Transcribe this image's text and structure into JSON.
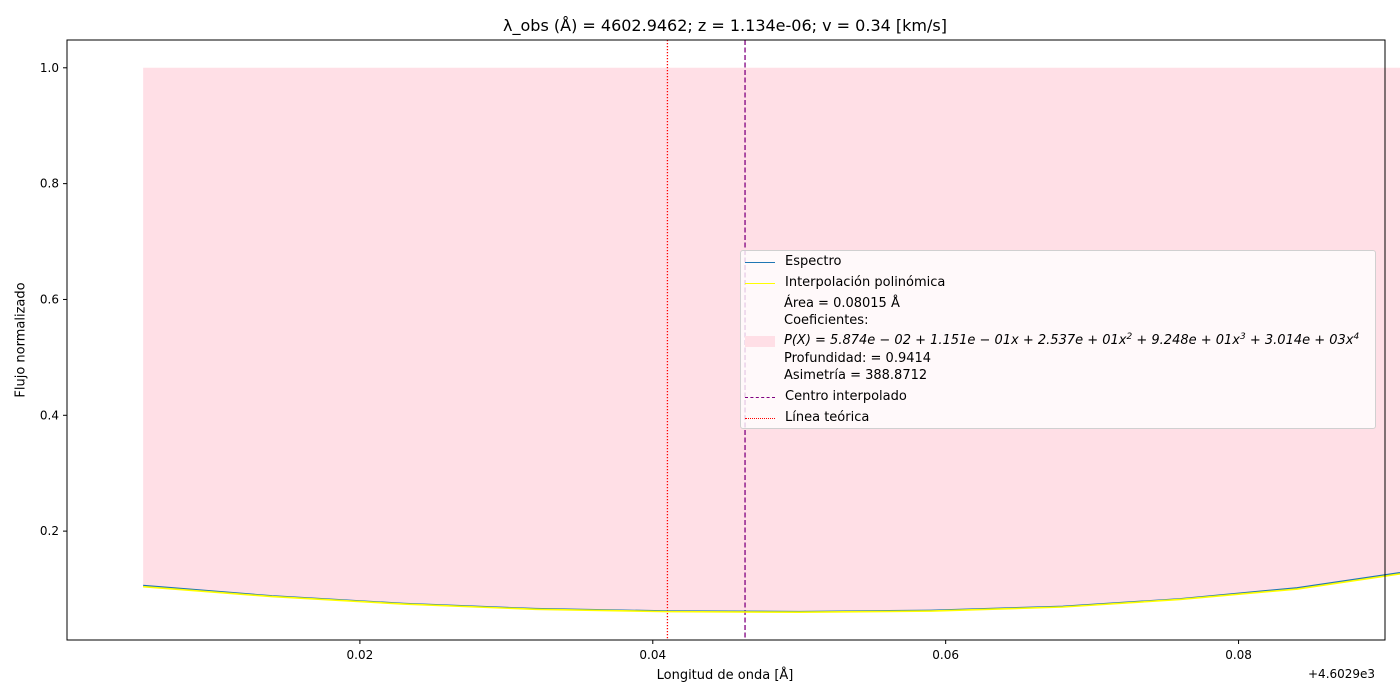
{
  "chart_data": {
    "type": "line",
    "title": "λ_obs (Å) = 4602.9462; z = 1.134e-06; v = 0.34 [km/s]",
    "xlabel": "Longitud de onda [Å]",
    "ylabel": "Flujo normalizado",
    "x_offset_label": "+4.6029e3",
    "x_offset": 4602.9,
    "xlim": [
      4602.9,
      4602.99
    ],
    "ylim": [
      0.012,
      1.048
    ],
    "xticks": [
      0.02,
      0.04,
      0.06,
      0.08
    ],
    "xtick_labels": [
      "0.02",
      "0.04",
      "0.06",
      "0.08"
    ],
    "yticks": [
      0.2,
      0.4,
      0.6,
      0.8,
      1.0
    ],
    "ytick_labels": [
      "0.2",
      "0.4",
      "0.6",
      "0.8",
      "1.0"
    ],
    "grid": false,
    "legend_position": "center-right",
    "fill_region": {
      "x_start": 4602.9052,
      "x_end": 4602.9918,
      "top": 1.0,
      "color": "#ffdfe6"
    },
    "series": [
      {
        "name": "Espectro",
        "color": "#1f77b4",
        "x": [
          4602.9052,
          4602.914,
          4602.923,
          4602.932,
          4602.941,
          4602.95,
          4602.959,
          4602.968,
          4602.976,
          4602.984,
          4602.9918
        ],
        "y": [
          0.106,
          0.088,
          0.075,
          0.066,
          0.062,
          0.061,
          0.063,
          0.07,
          0.083,
          0.102,
          0.131
        ]
      },
      {
        "name": "Interpolación polinómica",
        "color": "#ffff00",
        "x": [
          4602.9052,
          4602.914,
          4602.923,
          4602.932,
          4602.941,
          4602.95,
          4602.959,
          4602.968,
          4602.976,
          4602.984,
          4602.9918
        ],
        "y": [
          0.104,
          0.087,
          0.074,
          0.065,
          0.061,
          0.06,
          0.062,
          0.069,
          0.082,
          0.1,
          0.129
        ]
      },
      {
        "name": "Centro interpolado",
        "color": "#800080",
        "style": "dashed",
        "vline_x": 4602.9463
      },
      {
        "name": "Línea teórica",
        "color": "#ff0000",
        "style": "dotted",
        "vline_x": 4602.941
      }
    ],
    "legend": {
      "area": "Área = 0.08015 Å",
      "coef_title": "Coeficientes:",
      "poly_prefix": "P(X) = 5.874",
      "poly_term1": "e − 02 + 1.151",
      "poly_term2": "e − 01x + 2.537",
      "poly_term3": "e + 01x",
      "poly_term4": " + 9.248",
      "poly_term5": "e + 01x",
      "poly_term6": " + 3.014",
      "poly_term7": "e + 03x",
      "exp2": "2",
      "exp3": "3",
      "exp4": "4",
      "depth": "Profundidad: = 0.9414",
      "asym": "Asimetría = 388.8712"
    }
  }
}
